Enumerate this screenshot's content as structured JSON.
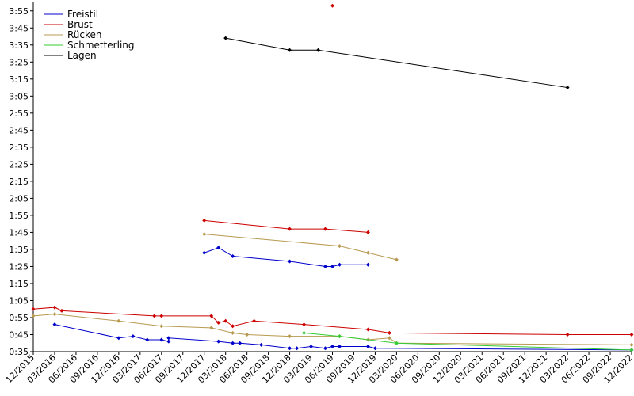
{
  "chart_data": {
    "type": "line",
    "title": "",
    "xlabel": "",
    "ylabel": "",
    "x_ticks": [
      "12/2015",
      "03/2016",
      "06/2016",
      "09/2016",
      "12/2016",
      "03/2017",
      "06/2017",
      "09/2017",
      "12/2017",
      "03/2018",
      "06/2018",
      "09/2018",
      "12/2018",
      "03/2019",
      "06/2019",
      "09/2019",
      "12/2019",
      "03/2020",
      "06/2020",
      "09/2020",
      "12/2020",
      "03/2021",
      "06/2021",
      "09/2021",
      "12/2021",
      "03/2022",
      "06/2022",
      "09/2022",
      "12/2022"
    ],
    "y_ticks": [
      "0:35",
      "0:45",
      "0:55",
      "1:05",
      "1:15",
      "1:25",
      "1:35",
      "1:45",
      "1:55",
      "2:05",
      "2:15",
      "2:25",
      "2:35",
      "2:45",
      "2:55",
      "3:05",
      "3:15",
      "3:25",
      "3:35",
      "3:45",
      "3:55"
    ],
    "x_range": [
      "2015-12",
      "2022-12"
    ],
    "y_range": [
      "0:35",
      "4:00"
    ],
    "grid": false,
    "legend_position": "top-left",
    "series": [
      {
        "name": "Freistil",
        "color": "#0000cc",
        "points": [
          {
            "x": "2016-03",
            "y": "0:51"
          },
          {
            "x": "2016-12",
            "y": "0:43"
          },
          {
            "x": "2017-02",
            "y": "0:44"
          },
          {
            "x": "2017-04",
            "y": "0:42"
          },
          {
            "x": "2017-06",
            "y": "0:42"
          },
          {
            "x": "2017-07",
            "y": "0:41"
          },
          {
            "x": "2017-07",
            "y": "0:43"
          },
          {
            "x": "2017-12",
            "y": "1:33"
          },
          {
            "x": "2018-02",
            "y": "1:36"
          },
          {
            "x": "2018-02",
            "y": "0:41"
          },
          {
            "x": "2018-04",
            "y": "1:31"
          },
          {
            "x": "2018-04",
            "y": "0:40"
          },
          {
            "x": "2018-05",
            "y": "0:40"
          },
          {
            "x": "2018-08",
            "y": "0:39"
          },
          {
            "x": "2018-12",
            "y": "1:28"
          },
          {
            "x": "2018-12",
            "y": "0:37"
          },
          {
            "x": "2019-01",
            "y": "0:37"
          },
          {
            "x": "2019-03",
            "y": "0:38"
          },
          {
            "x": "2019-05",
            "y": "1:25"
          },
          {
            "x": "2019-05",
            "y": "0:37"
          },
          {
            "x": "2019-06",
            "y": "1:25"
          },
          {
            "x": "2019-06",
            "y": "0:38"
          },
          {
            "x": "2019-07",
            "y": "1:26"
          },
          {
            "x": "2019-07",
            "y": "0:38"
          },
          {
            "x": "2019-11",
            "y": "1:26"
          },
          {
            "x": "2019-11",
            "y": "0:38"
          },
          {
            "x": "2019-12",
            "y": "0:37"
          },
          {
            "x": "2022-12",
            "y": "0:36"
          }
        ]
      },
      {
        "name": "Brust",
        "color": "#cc0000",
        "points": [
          {
            "x": "2015-12",
            "y": "1:00"
          },
          {
            "x": "2016-03",
            "y": "1:01"
          },
          {
            "x": "2016-04",
            "y": "0:59"
          },
          {
            "x": "2017-05",
            "y": "0:56"
          },
          {
            "x": "2017-06",
            "y": "0:56"
          },
          {
            "x": "2017-12",
            "y": "1:52"
          },
          {
            "x": "2018-01",
            "y": "0:56"
          },
          {
            "x": "2018-02",
            "y": "0:52"
          },
          {
            "x": "2018-03",
            "y": "0:53"
          },
          {
            "x": "2018-04",
            "y": "0:50"
          },
          {
            "x": "2018-07",
            "y": "0:53"
          },
          {
            "x": "2018-12",
            "y": "1:47"
          },
          {
            "x": "2019-02",
            "y": "0:51"
          },
          {
            "x": "2019-05",
            "y": "1:47"
          },
          {
            "x": "2019-06",
            "y": "3:58"
          },
          {
            "x": "2019-11",
            "y": "1:45"
          },
          {
            "x": "2019-11",
            "y": "0:48"
          },
          {
            "x": "2020-02",
            "y": "0:46"
          },
          {
            "x": "2022-03",
            "y": "0:45"
          },
          {
            "x": "2022-12",
            "y": "0:45"
          }
        ]
      },
      {
        "name": "Rücken",
        "color": "#b89a50",
        "points": [
          {
            "x": "2015-12",
            "y": "0:56"
          },
          {
            "x": "2016-03",
            "y": "0:57"
          },
          {
            "x": "2016-12",
            "y": "0:53"
          },
          {
            "x": "2017-06",
            "y": "0:50"
          },
          {
            "x": "2017-12",
            "y": "1:44"
          },
          {
            "x": "2018-01",
            "y": "0:49"
          },
          {
            "x": "2018-04",
            "y": "0:46"
          },
          {
            "x": "2018-06",
            "y": "0:45"
          },
          {
            "x": "2018-12",
            "y": "0:44"
          },
          {
            "x": "2019-07",
            "y": "1:37"
          },
          {
            "x": "2019-07",
            "y": "0:44"
          },
          {
            "x": "2019-11",
            "y": "1:33"
          },
          {
            "x": "2019-11",
            "y": "0:42"
          },
          {
            "x": "2020-02",
            "y": "0:43"
          },
          {
            "x": "2020-03",
            "y": "1:29"
          },
          {
            "x": "2020-03",
            "y": "0:40"
          },
          {
            "x": "2022-12",
            "y": "0:39"
          }
        ]
      },
      {
        "name": "Schmetterling",
        "color": "#33cc33",
        "points": [
          {
            "x": "2019-02",
            "y": "0:46"
          },
          {
            "x": "2019-07",
            "y": "0:44"
          },
          {
            "x": "2020-03",
            "y": "0:40"
          },
          {
            "x": "2022-12",
            "y": "0:36"
          }
        ]
      },
      {
        "name": "Lagen",
        "color": "#000000",
        "points": [
          {
            "x": "2018-03",
            "y": "3:39"
          },
          {
            "x": "2018-12",
            "y": "3:32"
          },
          {
            "x": "2019-04",
            "y": "3:32"
          },
          {
            "x": "2022-03",
            "y": "3:10"
          }
        ]
      }
    ]
  }
}
